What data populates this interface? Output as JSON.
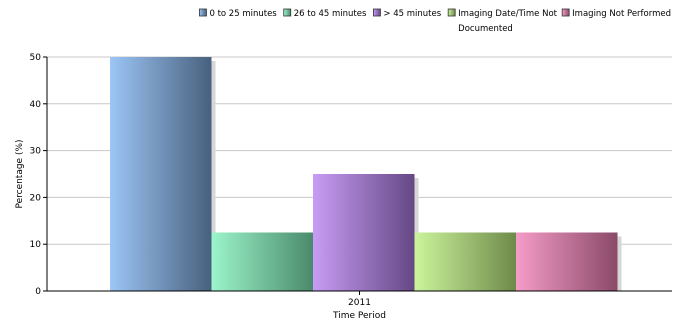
{
  "chart_data": {
    "type": "bar",
    "xlabel": "Time Period",
    "ylabel": "Percentage (%)",
    "categories": [
      "2011"
    ],
    "ylim": [
      0,
      50
    ],
    "yticks": [
      0,
      10,
      20,
      30,
      40,
      50
    ],
    "grid": true,
    "legend_position": "top-right",
    "series": [
      {
        "name": "0 to 25 minutes",
        "values": [
          50
        ],
        "color": "#7fa3d0",
        "gradient": [
          "#9cc6f5",
          "#48607e"
        ]
      },
      {
        "name": "26 to 45 minutes",
        "values": [
          12.5
        ],
        "color": "#66c59a",
        "gradient": [
          "#9cf5cb",
          "#4a8a6b"
        ]
      },
      {
        "name": "> 45 minutes",
        "values": [
          25
        ],
        "color": "#a57bd9",
        "gradient": [
          "#c89cf5",
          "#654884"
        ]
      },
      {
        "name": "Imaging Date/Time Not Documented",
        "values": [
          12.5
        ],
        "color": "#a8d06e",
        "gradient": [
          "#cbf59c",
          "#6f8a4a"
        ]
      },
      {
        "name": "Imaging Not Performed",
        "values": [
          12.5
        ],
        "color": "#d97ba8",
        "gradient": [
          "#f59cc8",
          "#8a4a68"
        ]
      }
    ]
  }
}
